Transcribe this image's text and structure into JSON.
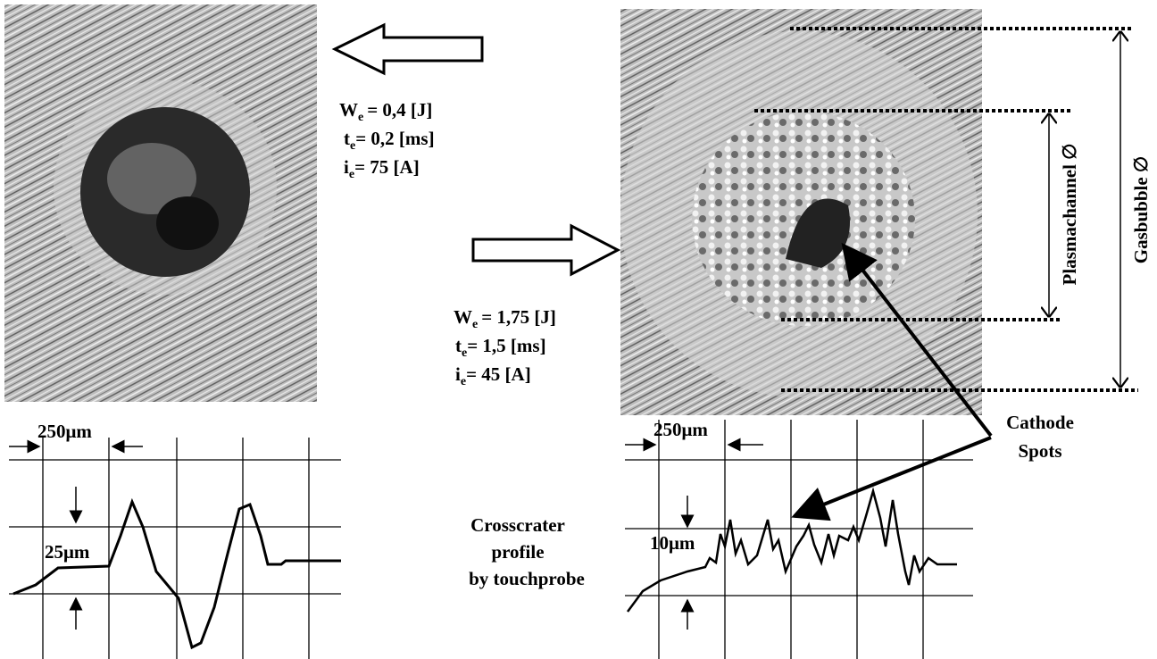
{
  "left": {
    "params": [
      {
        "symbol": "W",
        "sub": "e",
        "rest": "= 0,4 [J]"
      },
      {
        "symbol": "t",
        "sub": "e",
        "rest": "= 0,2 [ms]"
      },
      {
        "symbol": "i",
        "sub": "e",
        "rest": "= 75 [A]"
      }
    ],
    "scale_x": "250μm",
    "scale_y": "25μm"
  },
  "right": {
    "params": [
      {
        "symbol": "W",
        "sub": "e",
        "rest": "= 1,75 [J]"
      },
      {
        "symbol": "t",
        "sub": "e",
        "rest": "= 1,5 [ms]"
      },
      {
        "symbol": "i",
        "sub": "e",
        "rest": "= 45 [A]"
      }
    ],
    "scale_x": "250μm",
    "scale_y": "10μm"
  },
  "profile_label": [
    "Crosscrater",
    "profile",
    "by touchprobe"
  ],
  "cathode_label": [
    "Cathode",
    "Spots"
  ],
  "plasmachannel": "Plasmachannel ∅",
  "gasbubble": "Gasbubble ∅"
}
